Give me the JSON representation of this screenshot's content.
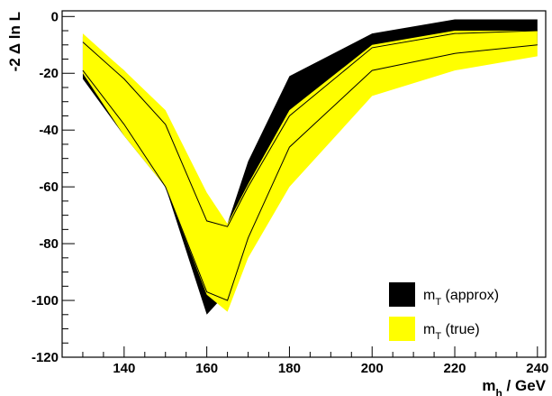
{
  "chart_data": {
    "type": "area",
    "xlabel": "m_h / GeV",
    "ylabel": "-2 Δ ln L",
    "xlim": [
      125,
      242
    ],
    "ylim": [
      -120,
      2
    ],
    "xticks": [
      140,
      160,
      180,
      200,
      220,
      240
    ],
    "yticks": [
      0,
      -20,
      -40,
      -60,
      -80,
      -100,
      -120
    ],
    "grid": false,
    "legend_position": "bottom-right",
    "x": [
      130,
      140,
      150,
      160,
      165,
      170,
      180,
      200,
      220,
      240
    ],
    "series": [
      {
        "name": "m_T (approx)",
        "color": "#000000",
        "upper": [
          -7,
          -19,
          -35,
          -70,
          -73,
          -51,
          -21,
          -6,
          -1,
          -1
        ],
        "lower": [
          -22,
          -42,
          -60,
          -105,
          -97,
          -80,
          -45,
          -23,
          -13,
          -10
        ]
      },
      {
        "name": "m_T (true)",
        "color": "#ffff00",
        "upper": [
          -6,
          -19,
          -33,
          -62,
          -73,
          -59,
          -33,
          -10,
          -5,
          -5
        ],
        "lower": [
          -20,
          -42,
          -60,
          -98,
          -104,
          -85,
          -60,
          -28,
          -19,
          -14
        ]
      }
    ],
    "central_line": {
      "color": "#000000",
      "values": [
        -9,
        -22,
        -38,
        -72,
        -74,
        -60,
        -35,
        -11,
        -6,
        -5
      ]
    },
    "central_line_2": {
      "color": "#000000",
      "values": [
        -19,
        -38,
        -60,
        -97,
        -100,
        -78,
        -46,
        -19,
        -13,
        -10
      ]
    },
    "legend": [
      {
        "main": "m",
        "sub": "T",
        "rest": " (approx)",
        "color": "#000000"
      },
      {
        "main": "m",
        "sub": "T",
        "rest": " (true)",
        "color": "#ffff00"
      }
    ],
    "xlabel_parts": {
      "main": "m",
      "sub": "h",
      "rest": " / GeV"
    },
    "ylabel_text": "-2 Δ ln L"
  }
}
